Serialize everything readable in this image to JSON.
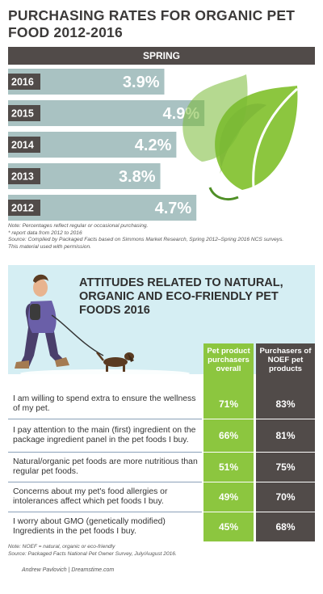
{
  "page": {
    "title": "PURCHASING RATES FOR ORGANIC PET FOOD 2012-2016",
    "season": "SPRING",
    "note_lines": [
      "Note: Percentages reflect regular or occasional purchasing.",
      "* report data from 2012 to 2016",
      "Source: Compiled by Packaged Facts based on Simmons Market Research, Spring 2012–Spring 2016 NCS surveys.",
      "This material used with permission."
    ],
    "attitudes_title": "ATTITUDES RELATED TO NATURAL, ORGANIC AND ECO-FRIENDLY PET FOODS 2016",
    "note2_lines": [
      "Note: NOEF = natural, organic or eco-friendly",
      "Source: Packaged Facts National Pet Owner Survey, July/August 2016."
    ],
    "credit": "Andrew Pavlovich | Dreamstime.com"
  },
  "colors": {
    "bar": "#a9c2c2",
    "year_band": "#514b49",
    "green": "#8cc63f",
    "dark": "#514b49",
    "banner": "#d5eef3"
  },
  "icons": [
    "leaf-icon",
    "woman-walking-dog-illustration"
  ],
  "chart_data": [
    {
      "type": "bar",
      "orientation": "horizontal",
      "categories": [
        "2016",
        "2015",
        "2014",
        "2013",
        "2012"
      ],
      "values": [
        3.9,
        4.9,
        4.2,
        3.8,
        4.7
      ],
      "value_labels": [
        "3.9%",
        "4.9%",
        "4.2%",
        "3.8%",
        "4.7%"
      ],
      "title": "PURCHASING RATES FOR ORGANIC PET FOOD 2012-2016",
      "subtitle": "SPRING",
      "xlim": [
        0,
        5.2
      ]
    },
    {
      "type": "table",
      "title": "ATTITUDES RELATED TO NATURAL, ORGANIC AND ECO-FRIENDLY PET FOODS 2016",
      "columns": [
        "Pet product purchasers overall",
        "Purchasers of NOEF pet products"
      ],
      "rows": [
        {
          "statement": "I am willing to spend extra to ensure the wellness of my pet.",
          "overall": "71%",
          "noef": "83%"
        },
        {
          "statement": "I pay attention to the main (first) ingredient on the package ingredient panel in the pet foods I buy.",
          "overall": "66%",
          "noef": "81%"
        },
        {
          "statement": "Natural/organic pet foods are more nutritious than regular pet foods.",
          "overall": "51%",
          "noef": "75%"
        },
        {
          "statement": "Concerns about my pet's food allergies or intolerances affect which pet foods I buy.",
          "overall": "49%",
          "noef": "70%"
        },
        {
          "statement": "I worry about GMO (genetically modified) Ingredients in the pet foods I buy.",
          "overall": "45%",
          "noef": "68%"
        }
      ]
    }
  ]
}
